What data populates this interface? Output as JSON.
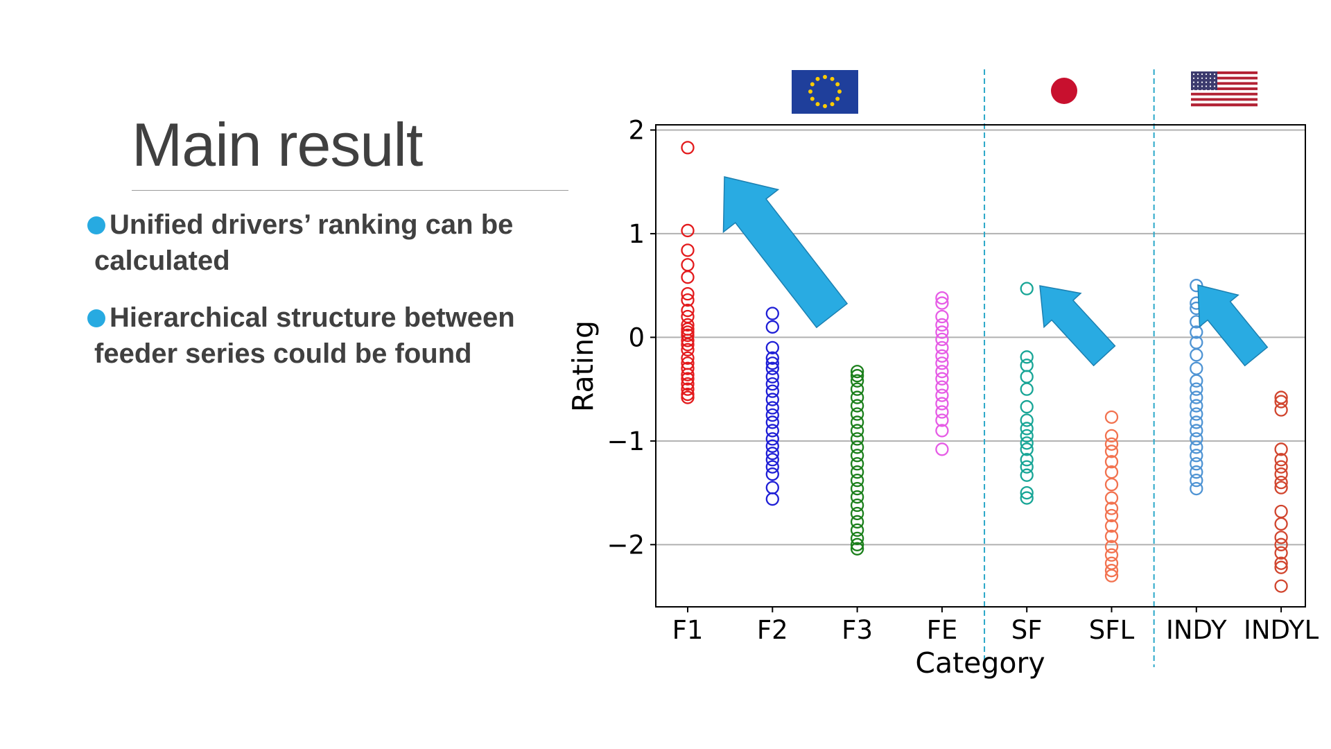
{
  "slide": {
    "title": "Main result",
    "bullets": [
      "Unified drivers’ ranking can be calculated",
      "Hierarchical structure between feeder series could be found"
    ]
  },
  "flags": [
    "eu-flag-icon",
    "japan-flag-icon",
    "usa-flag-icon"
  ],
  "arrow_color": "#29abe2",
  "divider_color": "#2aa7c8",
  "chart_data": {
    "type": "scatter",
    "title": "",
    "xlabel": "Category",
    "ylabel": "Rating",
    "categories": [
      "F1",
      "F2",
      "F3",
      "FE",
      "SF",
      "SFL",
      "INDY",
      "INDYL"
    ],
    "ylim": [
      -2.6,
      2.05
    ],
    "yticks": [
      2,
      1,
      0,
      -1,
      -2
    ],
    "ytick_labels": [
      "2",
      "1",
      "0",
      "−1",
      "−2"
    ],
    "grid": "horizontal",
    "dividers_after_category": [
      "FE",
      "SFL"
    ],
    "marker": "open circle",
    "series": [
      {
        "category": "F1",
        "color": "#e31a1c",
        "values": [
          1.83,
          1.03,
          0.84,
          0.7,
          0.58,
          0.42,
          0.36,
          0.26,
          0.2,
          0.12,
          0.08,
          0.05,
          0.02,
          -0.03,
          -0.07,
          -0.12,
          -0.2,
          -0.25,
          -0.3,
          -0.36,
          -0.4,
          -0.45,
          -0.5,
          -0.55,
          -0.58
        ]
      },
      {
        "category": "F2",
        "color": "#1f1fd6",
        "values": [
          0.23,
          0.1,
          -0.1,
          -0.2,
          -0.25,
          -0.3,
          -0.38,
          -0.45,
          -0.52,
          -0.6,
          -0.68,
          -0.75,
          -0.82,
          -0.9,
          -0.98,
          -1.05,
          -1.12,
          -1.18,
          -1.25,
          -1.32,
          -1.45,
          -1.56
        ]
      },
      {
        "category": "F3",
        "color": "#1a7f1a",
        "values": [
          -0.33,
          -0.37,
          -0.42,
          -0.5,
          -0.58,
          -0.66,
          -0.74,
          -0.82,
          -0.9,
          -0.98,
          -1.06,
          -1.14,
          -1.22,
          -1.3,
          -1.38,
          -1.46,
          -1.54,
          -1.62,
          -1.7,
          -1.78,
          -1.86,
          -1.94,
          -2.0,
          -2.04
        ]
      },
      {
        "category": "FE",
        "color": "#e65ce6",
        "values": [
          0.38,
          0.33,
          0.2,
          0.12,
          0.05,
          -0.02,
          -0.1,
          -0.18,
          -0.25,
          -0.33,
          -0.4,
          -0.48,
          -0.56,
          -0.64,
          -0.72,
          -0.8,
          -0.9,
          -1.08
        ]
      },
      {
        "category": "SF",
        "color": "#17a596",
        "values": [
          0.47,
          -0.19,
          -0.27,
          -0.38,
          -0.5,
          -0.67,
          -0.8,
          -0.88,
          -0.95,
          -1.02,
          -1.08,
          -1.18,
          -1.25,
          -1.33,
          -1.5,
          -1.55
        ]
      },
      {
        "category": "SFL",
        "color": "#f2724f",
        "values": [
          -0.77,
          -0.95,
          -1.03,
          -1.1,
          -1.2,
          -1.3,
          -1.42,
          -1.55,
          -1.65,
          -1.72,
          -1.82,
          -1.92,
          -2.02,
          -2.1,
          -2.18,
          -2.25,
          -2.3
        ]
      },
      {
        "category": "INDY",
        "color": "#4f94d4",
        "values": [
          0.5,
          0.33,
          0.28,
          0.15,
          0.05,
          -0.05,
          -0.17,
          -0.3,
          -0.42,
          -0.5,
          -0.58,
          -0.66,
          -0.74,
          -0.82,
          -0.9,
          -0.98,
          -1.06,
          -1.14,
          -1.22,
          -1.3,
          -1.38,
          -1.46
        ]
      },
      {
        "category": "INDYL",
        "color": "#d1452e",
        "values": [
          -0.58,
          -0.62,
          -0.7,
          -1.08,
          -1.18,
          -1.25,
          -1.32,
          -1.4,
          -1.45,
          -1.68,
          -1.8,
          -1.93,
          -2.0,
          -2.08,
          -2.18,
          -2.22,
          -2.4
        ]
      }
    ]
  }
}
